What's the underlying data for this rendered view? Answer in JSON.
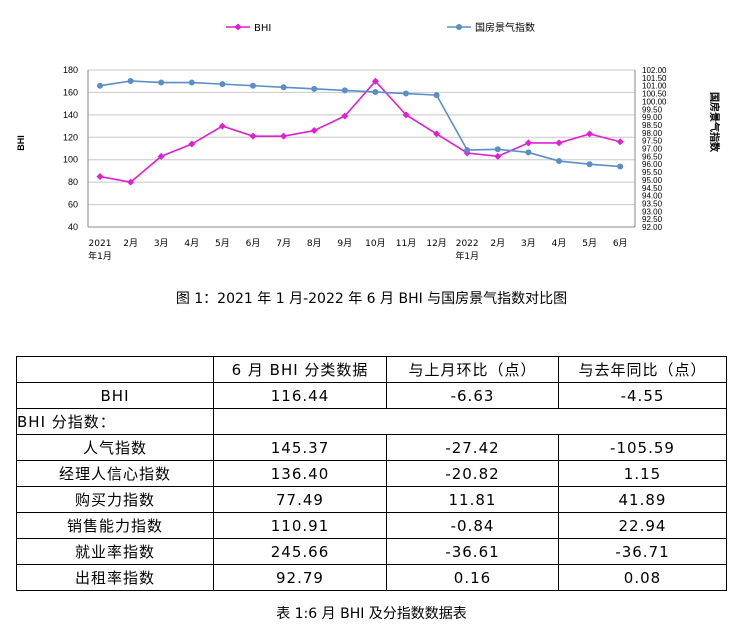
{
  "chart_data": {
    "type": "line",
    "categories": [
      "2021年1月",
      "2月",
      "3月",
      "4月",
      "5月",
      "6月",
      "7月",
      "8月",
      "9月",
      "10月",
      "11月",
      "12月",
      "2022年1月",
      "2月",
      "3月",
      "4月",
      "5月",
      "6月"
    ],
    "tick_lines": [
      [
        "2021",
        "年1月"
      ],
      [
        "2月"
      ],
      [
        "3月"
      ],
      [
        "4月"
      ],
      [
        "5月"
      ],
      [
        "6月"
      ],
      [
        "7月"
      ],
      [
        "8月"
      ],
      [
        "9月"
      ],
      [
        "10月"
      ],
      [
        "11月"
      ],
      [
        "12月"
      ],
      [
        "2022",
        "年1月"
      ],
      [
        "2月"
      ],
      [
        "3月"
      ],
      [
        "4月"
      ],
      [
        "5月"
      ],
      [
        "6月"
      ]
    ],
    "series": [
      {
        "name": "BHI",
        "axis": "left",
        "color": "#e020d0",
        "values": [
          85,
          80,
          103,
          114,
          130,
          121,
          121,
          126,
          139,
          170,
          140,
          123,
          106,
          103,
          115,
          115,
          123,
          116
        ]
      },
      {
        "name": "国房景气指数",
        "axis": "right",
        "color": "#5b8ec8",
        "values": [
          101.0,
          101.3,
          101.2,
          101.2,
          101.1,
          101.0,
          100.9,
          100.8,
          100.7,
          100.6,
          100.5,
          100.4,
          96.9,
          96.95,
          96.75,
          96.2,
          96.0,
          95.85
        ]
      }
    ],
    "ylabel_left": "BHI",
    "ylabel_right": "国房景气指数",
    "yticks_left": [
      "180",
      "160",
      "140",
      "120",
      "100",
      "80",
      "60",
      "40"
    ],
    "ylim_left": [
      40,
      180
    ],
    "yticks_right": [
      "102.00",
      "101.50",
      "101.00",
      "100.50",
      "100.00",
      "99.50",
      "99.00",
      "98.50",
      "98.00",
      "97.50",
      "97.00",
      "96.50",
      "96.00",
      "95.50",
      "95.00",
      "94.50",
      "94.00",
      "93.50",
      "93.00",
      "92.50",
      "92.00"
    ],
    "ylim_right": [
      92,
      102
    ],
    "grid": "horizontal",
    "legend": "top"
  },
  "figure_caption": "图 1：2021 年 1 月-2022 年 6 月 BHI 与国房景气指数对比图",
  "table": {
    "headers": [
      "",
      "6 月 BHI 分类数据",
      "与上月环比（点）",
      "与去年同比（点）"
    ],
    "bhi_row": {
      "label": "BHI",
      "value": "116.44",
      "mom": "-6.63",
      "yoy": "-4.55"
    },
    "section_label": "BHI 分指数：",
    "rows": [
      {
        "label": "人气指数",
        "value": "145.37",
        "mom": "-27.42",
        "yoy": "-105.59"
      },
      {
        "label": "经理人信心指数",
        "value": "136.40",
        "mom": "-20.82",
        "yoy": "1.15"
      },
      {
        "label": "购买力指数",
        "value": "77.49",
        "mom": "11.81",
        "yoy": "41.89"
      },
      {
        "label": "销售能力指数",
        "value": "110.91",
        "mom": "-0.84",
        "yoy": "22.94"
      },
      {
        "label": "就业率指数",
        "value": "245.66",
        "mom": "-36.61",
        "yoy": "-36.71"
      },
      {
        "label": "出租率指数",
        "value": "92.79",
        "mom": "0.16",
        "yoy": "0.08"
      }
    ]
  },
  "table_caption": "表 1:6 月 BHI 及分指数数据表"
}
